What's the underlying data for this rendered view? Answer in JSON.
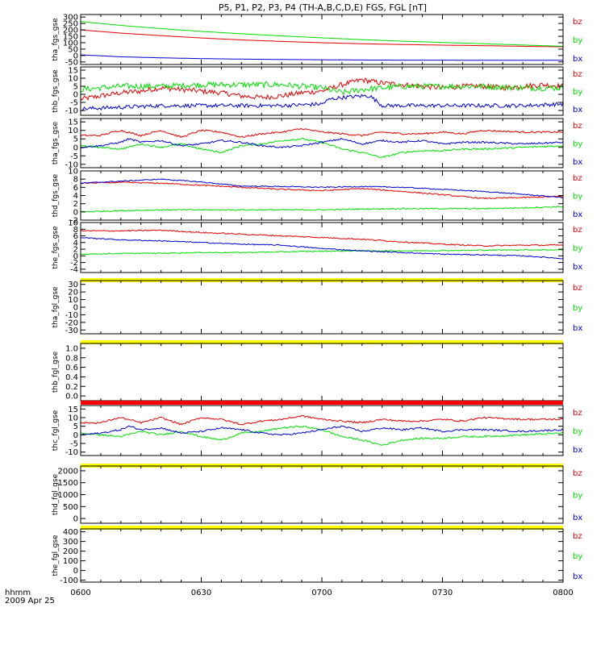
{
  "chart_data": {
    "type": "line",
    "title": "P5, P1, P2, P3, P4 (TH-A,B,C,D,E) FGS, FGL [nT]",
    "colors": {
      "bz": "#e00000",
      "by": "#00dd00",
      "bx": "#0000d0",
      "bar_yellow": "#ffff00",
      "bar_red": "#ff0000"
    },
    "xaxis": {
      "labels": [
        "0600",
        "0630",
        "0700",
        "0730",
        "0800"
      ],
      "range_minutes": [
        0,
        120
      ],
      "footer_label": "hhmm",
      "footer_date": "2009 Apr 25"
    },
    "panels": [
      {
        "ylabel": "tha_fgs_gse",
        "ylim": [
          -70,
          320
        ],
        "yticks": [
          "-50",
          "0",
          "50",
          "100",
          "150",
          "200",
          "250",
          "300"
        ],
        "yticks_values": [
          -50,
          0,
          50,
          100,
          150,
          200,
          250,
          300
        ],
        "legend": [
          "bz",
          "by",
          "bx"
        ],
        "series": [
          {
            "name": "bz",
            "x": [
              0,
              10,
              20,
              30,
              40,
              50,
              60,
              70,
              80,
              90,
              100,
              110,
              120
            ],
            "y": [
              200,
              175,
              155,
              137,
              122,
              110,
              100,
              92,
              86,
              81,
              77,
              72,
              68
            ],
            "noise": 0
          },
          {
            "name": "by",
            "x": [
              0,
              10,
              20,
              30,
              40,
              50,
              60,
              70,
              80,
              90,
              100,
              110,
              120
            ],
            "y": [
              265,
              235,
              210,
              188,
              170,
              153,
              138,
              124,
              112,
              102,
              92,
              82,
              72
            ],
            "noise": 0
          },
          {
            "name": "bx",
            "x": [
              0,
              5,
              10,
              20,
              30,
              40,
              50,
              60,
              70,
              80,
              90,
              100,
              110,
              120
            ],
            "y": [
              5,
              -2,
              -10,
              -18,
              -24,
              -28,
              -31,
              -33,
              -35,
              -36,
              -36,
              -37,
              -37,
              -37
            ],
            "noise": 0
          }
        ]
      },
      {
        "ylabel": "thb_fgs_gse",
        "ylim": [
          -13,
          17
        ],
        "yticks": [
          "-10",
          "-5",
          "0",
          "5",
          "10",
          "15"
        ],
        "yticks_values": [
          -10,
          -5,
          0,
          5,
          10,
          15
        ],
        "legend": [
          "bz",
          "by",
          "bx"
        ],
        "series": [
          {
            "name": "bz",
            "x": [
              0,
              5,
              10,
              15,
              20,
              25,
              30,
              35,
              40,
              45,
              50,
              55,
              60,
              65,
              70,
              75,
              80,
              85,
              90,
              95,
              100,
              105,
              110,
              115,
              120
            ],
            "y": [
              -3,
              -1,
              1,
              2,
              4,
              3,
              2,
              1,
              -1,
              -2,
              -1,
              1,
              2,
              6,
              9,
              7,
              6,
              5,
              4,
              5,
              5,
              4,
              5,
              6,
              5
            ],
            "noise": 1.6
          },
          {
            "name": "by",
            "x": [
              0,
              10,
              20,
              30,
              40,
              50,
              60,
              65,
              70,
              80,
              90,
              100,
              110,
              120
            ],
            "y": [
              3,
              5,
              5,
              6,
              6,
              6,
              4,
              1,
              3,
              5,
              5,
              5,
              4,
              4
            ],
            "noise": 1.8
          },
          {
            "name": "bx",
            "x": [
              0,
              10,
              20,
              30,
              40,
              50,
              60,
              62,
              65,
              70,
              72,
              75,
              80,
              90,
              100,
              110,
              120
            ],
            "y": [
              -9,
              -8,
              -7,
              -7,
              -7,
              -7,
              -6,
              -3,
              -2,
              -1,
              -1,
              -7,
              -7,
              -7,
              -7,
              -7,
              -6
            ],
            "noise": 1.2
          }
        ]
      },
      {
        "ylabel": "tha_fgs_gse",
        "ylim": [
          -12,
          17
        ],
        "yticks": [
          "-10",
          "-5",
          "0",
          "5",
          "10",
          "15"
        ],
        "yticks_values": [
          -10,
          -5,
          0,
          5,
          10,
          15
        ],
        "legend": [
          "bz",
          "by",
          "bx"
        ],
        "series": [
          {
            "name": "bz",
            "x": [
              0,
              5,
              8,
              10,
              15,
              20,
              25,
              30,
              35,
              40,
              45,
              50,
              55,
              60,
              65,
              70,
              75,
              80,
              85,
              90,
              95,
              100,
              110,
              120
            ],
            "y": [
              7,
              7,
              9,
              10,
              7,
              10,
              6,
              10,
              9,
              6,
              8,
              9,
              11,
              9,
              8,
              7,
              9,
              8,
              8,
              9,
              8,
              10,
              9,
              9
            ],
            "noise": 0.5
          },
          {
            "name": "by",
            "x": [
              0,
              5,
              10,
              15,
              20,
              25,
              30,
              35,
              40,
              45,
              50,
              55,
              60,
              65,
              70,
              75,
              80,
              85,
              90,
              95,
              100,
              110,
              120
            ],
            "y": [
              1,
              0,
              -1,
              2,
              0,
              2,
              -1,
              -3,
              1,
              2,
              4,
              5,
              3,
              -1,
              -3,
              -6,
              -3,
              -2,
              -2,
              -1,
              -1,
              0,
              1
            ],
            "noise": 0.5
          },
          {
            "name": "bx",
            "x": [
              0,
              5,
              10,
              12,
              15,
              20,
              25,
              30,
              35,
              40,
              45,
              50,
              55,
              60,
              65,
              70,
              75,
              80,
              85,
              90,
              95,
              100,
              110,
              120
            ],
            "y": [
              0,
              1,
              3,
              5,
              3,
              4,
              1,
              2,
              4,
              3,
              1,
              0,
              1,
              3,
              5,
              2,
              4,
              3,
              4,
              2,
              3,
              3,
              2,
              3
            ],
            "noise": 0.5
          }
        ]
      },
      {
        "ylabel": "thd_fgs_gse",
        "ylim": [
          -2,
          10
        ],
        "yticks": [
          "-2",
          "0",
          "2",
          "4",
          "6",
          "8",
          "10"
        ],
        "yticks_values": [
          -2,
          0,
          2,
          4,
          6,
          8,
          10
        ],
        "legend": [
          "bz",
          "by",
          "bx"
        ],
        "series": [
          {
            "name": "bz",
            "x": [
              0,
              10,
              20,
              30,
              40,
              50,
              60,
              70,
              80,
              90,
              100,
              110,
              120
            ],
            "y": [
              7,
              7.2,
              7,
              6.5,
              6,
              5.5,
              5.2,
              5.7,
              5.0,
              4.2,
              3.3,
              3.5,
              3.8
            ],
            "noise": 0.15
          },
          {
            "name": "by",
            "x": [
              0,
              10,
              20,
              30,
              40,
              50,
              60,
              70,
              80,
              90,
              100,
              110,
              120
            ],
            "y": [
              0,
              0.3,
              0.5,
              0.5,
              0.5,
              0.5,
              0.5,
              0.7,
              0.8,
              0.8,
              0.8,
              1.0,
              1.3
            ],
            "noise": 0.15
          },
          {
            "name": "bx",
            "x": [
              0,
              10,
              20,
              30,
              40,
              50,
              60,
              70,
              80,
              90,
              100,
              110,
              120
            ],
            "y": [
              7,
              7.5,
              8,
              7.3,
              6.3,
              6.2,
              6.0,
              6.2,
              6.0,
              5.5,
              5.0,
              4.3,
              3.5
            ],
            "noise": 0.12
          }
        ]
      },
      {
        "ylabel": "the_fgs_gse",
        "ylim": [
          -5,
          10
        ],
        "yticks": [
          "-4",
          "-2",
          "0",
          "2",
          "4",
          "6",
          "8",
          "10"
        ],
        "yticks_values": [
          -4,
          -2,
          0,
          2,
          4,
          6,
          8,
          10
        ],
        "legend": [
          "bz",
          "by",
          "bx"
        ],
        "series": [
          {
            "name": "bz",
            "x": [
              0,
              10,
              20,
              30,
              40,
              50,
              60,
              70,
              80,
              90,
              100,
              110,
              120
            ],
            "y": [
              7.5,
              7.5,
              7.7,
              7,
              6.5,
              6,
              5.5,
              5,
              4.2,
              3.5,
              3.0,
              3.2,
              3.2
            ],
            "noise": 0.18
          },
          {
            "name": "by",
            "x": [
              0,
              10,
              20,
              30,
              40,
              50,
              60,
              70,
              80,
              90,
              100,
              110,
              120
            ],
            "y": [
              0.5,
              0.7,
              0.8,
              1.0,
              1.0,
              1.2,
              1.4,
              1.5,
              1.5,
              1.6,
              1.7,
              1.8,
              1.8
            ],
            "noise": 0.15
          },
          {
            "name": "bx",
            "x": [
              0,
              10,
              20,
              30,
              40,
              50,
              60,
              70,
              80,
              90,
              100,
              110,
              120
            ],
            "y": [
              5.5,
              4.8,
              4.5,
              4.0,
              3.5,
              3.2,
              2.2,
              1.5,
              1.0,
              0.5,
              0.3,
              0.0,
              -0.8
            ],
            "noise": 0.15
          }
        ]
      },
      {
        "ylabel": "tha_fgl_gse",
        "ylim": [
          -35,
          35
        ],
        "yticks": [
          "-30",
          "-20",
          "-10",
          "0",
          "10",
          "20",
          "30"
        ],
        "yticks_values": [
          -30,
          -20,
          -10,
          0,
          10,
          20,
          30
        ],
        "legend": [
          "bz",
          "by",
          "bx"
        ],
        "topbar": "yellow",
        "series": []
      },
      {
        "ylabel": "thb_fgl_gse",
        "ylim": [
          -0.1,
          1.1
        ],
        "yticks": [
          "0.0",
          "0.2",
          "0.4",
          "0.6",
          "0.8",
          "1.0"
        ],
        "yticks_values": [
          0,
          0.2,
          0.4,
          0.6,
          0.8,
          1.0
        ],
        "legend": [],
        "topbar": "yellow",
        "series": []
      },
      {
        "ylabel": "thc_fgl_gse",
        "ylim": [
          -12,
          17
        ],
        "yticks": [
          "-10",
          "-5",
          "0",
          "5",
          "10",
          "15"
        ],
        "yticks_values": [
          -10,
          -5,
          0,
          5,
          10,
          15
        ],
        "legend": [
          "bz",
          "by",
          "bx"
        ],
        "topbar": "red",
        "series": [
          {
            "name": "bz",
            "x": [
              0,
              5,
              8,
              10,
              15,
              20,
              25,
              30,
              35,
              40,
              45,
              50,
              55,
              60,
              65,
              70,
              75,
              80,
              85,
              90,
              95,
              100,
              110,
              120
            ],
            "y": [
              7,
              7,
              9,
              10,
              7,
              10,
              6,
              10,
              9,
              6,
              8,
              9,
              11,
              9,
              8,
              7,
              9,
              8,
              8,
              9,
              8,
              10,
              9,
              9
            ],
            "noise": 0.5
          },
          {
            "name": "by",
            "x": [
              0,
              5,
              10,
              15,
              20,
              25,
              30,
              35,
              40,
              45,
              50,
              55,
              60,
              65,
              70,
              75,
              80,
              85,
              90,
              95,
              100,
              110,
              120
            ],
            "y": [
              1,
              0,
              -1,
              2,
              0,
              2,
              -1,
              -3,
              1,
              2,
              4,
              5,
              3,
              -1,
              -3,
              -6,
              -3,
              -2,
              -2,
              -1,
              -1,
              0,
              1
            ],
            "noise": 0.5
          },
          {
            "name": "bx",
            "x": [
              0,
              5,
              10,
              12,
              15,
              20,
              25,
              30,
              35,
              40,
              45,
              50,
              55,
              60,
              65,
              70,
              75,
              80,
              85,
              90,
              95,
              100,
              110,
              120
            ],
            "y": [
              0,
              1,
              3,
              5,
              3,
              4,
              1,
              2,
              4,
              3,
              1,
              0,
              1,
              3,
              5,
              2,
              4,
              3,
              4,
              2,
              3,
              3,
              2,
              3
            ],
            "noise": 0.5
          }
        ]
      },
      {
        "ylabel": "thd_fgl_gse",
        "ylim": [
          -200,
          2200
        ],
        "yticks": [
          "0",
          "500",
          "1000",
          "1500",
          "2000"
        ],
        "yticks_values": [
          0,
          500,
          1000,
          1500,
          2000
        ],
        "legend": [
          "bz",
          "by",
          "bx"
        ],
        "topbar": "yellow",
        "series": []
      },
      {
        "ylabel": "the_fgl_gse",
        "ylim": [
          -120,
          430
        ],
        "yticks": [
          "-100",
          "0",
          "100",
          "200",
          "300",
          "400"
        ],
        "yticks_values": [
          -100,
          0,
          100,
          200,
          300,
          400
        ],
        "yticks_extra": [
          "-100",
          "0",
          "100",
          "200",
          "300",
          "400"
        ],
        "legend": [
          "bz",
          "by",
          "bx"
        ],
        "topbar": "yellow",
        "series": []
      }
    ]
  }
}
